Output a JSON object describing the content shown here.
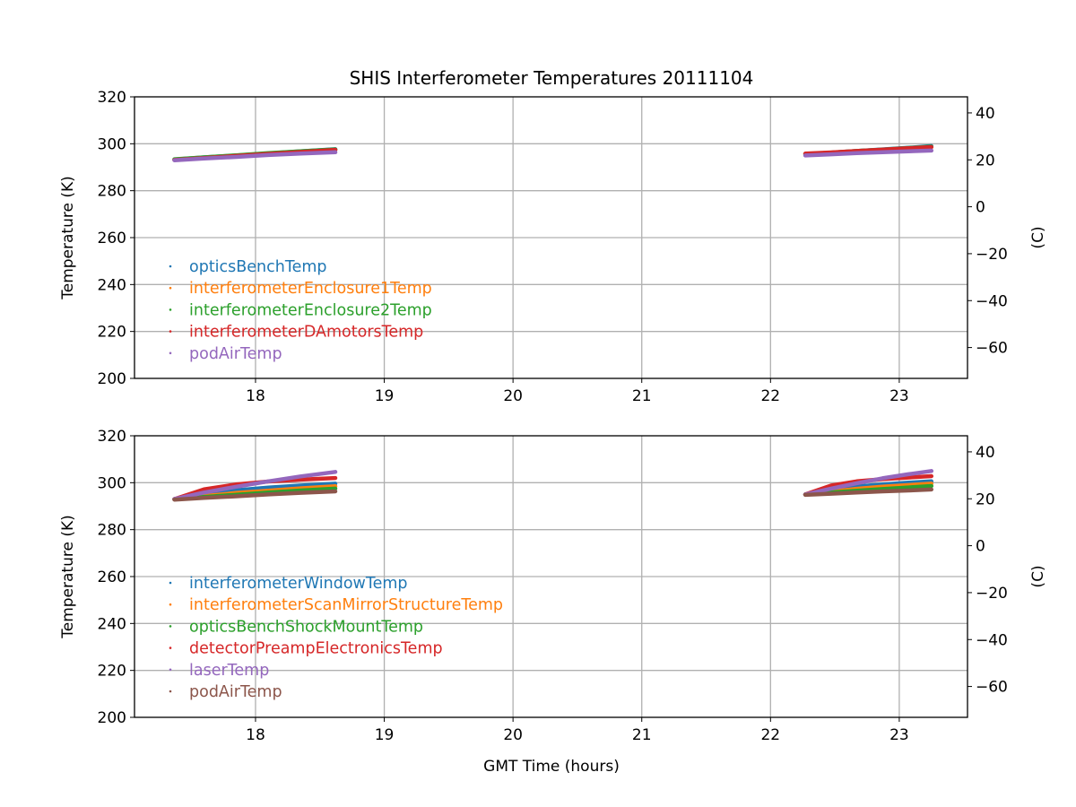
{
  "chart_data": [
    {
      "type": "line",
      "title": "SHIS Interferometer Temperatures 20111104",
      "xlabel": "",
      "ylabel": "Temperature (K)",
      "ylabel_right": "(C)",
      "xlim": [
        17.06,
        23.53
      ],
      "ylim": [
        200,
        320
      ],
      "ylim_right_offset_K_to_C": -273.15,
      "xticks": [
        "18",
        "19",
        "20",
        "21",
        "22",
        "23"
      ],
      "yticks": [
        "200",
        "220",
        "240",
        "260",
        "280",
        "300",
        "320"
      ],
      "yticks_right": [
        "−60",
        "−40",
        "−20",
        "0",
        "20",
        "40"
      ],
      "grid": true,
      "legend_position": "center-left",
      "segments_x": [
        [
          17.37,
          17.6,
          17.85,
          18.1,
          18.35,
          18.62
        ],
        [
          22.27,
          22.47,
          22.67,
          22.87,
          23.07,
          23.25
        ]
      ],
      "series": [
        {
          "name": "opticsBenchTemp",
          "color": "#1f77b4",
          "values": [
            [
              293.3,
              294.2,
              295.0,
              295.9,
              296.8,
              297.7
            ],
            [
              295.6,
              296.2,
              296.9,
              297.6,
              298.3,
              299.0
            ]
          ]
        },
        {
          "name": "interferometerEnclosure1Temp",
          "color": "#ff7f0e",
          "values": [
            [
              293.2,
              294.0,
              294.9,
              295.8,
              296.6,
              297.4
            ],
            [
              295.5,
              296.1,
              296.7,
              297.4,
              298.0,
              298.6
            ]
          ]
        },
        {
          "name": "interferometerEnclosure2Temp",
          "color": "#2ca02c",
          "values": [
            [
              293.4,
              294.2,
              295.1,
              296.0,
              296.8,
              297.6
            ],
            [
              295.6,
              296.2,
              296.9,
              297.5,
              298.2,
              298.8
            ]
          ]
        },
        {
          "name": "interferometerDAmotorsTemp",
          "color": "#d62728",
          "values": [
            [
              293.1,
              293.9,
              294.8,
              295.7,
              296.5,
              297.4
            ],
            [
              295.8,
              296.3,
              296.9,
              297.5,
              298.1,
              298.6
            ]
          ]
        },
        {
          "name": "podAirTemp",
          "color": "#9467bd",
          "values": [
            [
              293.0,
              293.7,
              294.4,
              295.2,
              295.8,
              296.4
            ],
            [
              295.0,
              295.5,
              296.0,
              296.4,
              296.8,
              297.1
            ]
          ]
        }
      ]
    },
    {
      "type": "line",
      "title": "",
      "xlabel": "GMT Time (hours)",
      "ylabel": "Temperature (K)",
      "ylabel_right": "(C)",
      "xlim": [
        17.06,
        23.53
      ],
      "ylim": [
        200,
        320
      ],
      "ylim_right_offset_K_to_C": -273.15,
      "xticks": [
        "18",
        "19",
        "20",
        "21",
        "22",
        "23"
      ],
      "yticks": [
        "200",
        "220",
        "240",
        "260",
        "280",
        "300",
        "320"
      ],
      "yticks_right": [
        "−60",
        "−40",
        "−20",
        "0",
        "20",
        "40"
      ],
      "grid": true,
      "legend_position": "center-left",
      "segments_x": [
        [
          17.37,
          17.6,
          17.85,
          18.1,
          18.35,
          18.62
        ],
        [
          22.27,
          22.47,
          22.67,
          22.87,
          23.07,
          23.25
        ]
      ],
      "series": [
        {
          "name": "interferometerWindowTemp",
          "color": "#1f77b4",
          "values": [
            [
              293,
              295.3,
              296.8,
              297.9,
              298.8,
              299.6
            ],
            [
              295,
              297,
              298.4,
              299.3,
              300,
              300.6
            ]
          ]
        },
        {
          "name": "interferometerScanMirrorStructureTemp",
          "color": "#ff7f0e",
          "values": [
            [
              293,
              294.3,
              295.6,
              296.6,
              297.6,
              298.5
            ],
            [
              295,
              296.2,
              297.4,
              298.3,
              299,
              299.6
            ]
          ]
        },
        {
          "name": "opticsBenchShockMountTemp",
          "color": "#2ca02c",
          "values": [
            [
              293,
              293.9,
              294.9,
              295.8,
              296.7,
              297.5
            ],
            [
              295,
              295.8,
              296.6,
              297.3,
              298,
              298.6
            ]
          ]
        },
        {
          "name": "detectorPreampElectronicsTemp",
          "color": "#d62728",
          "values": [
            [
              293,
              297.2,
              299.3,
              300.5,
              301.3,
              302
            ],
            [
              295,
              298.8,
              300.6,
              301.5,
              302.2,
              302.8
            ]
          ]
        },
        {
          "name": "laserTemp",
          "color": "#9467bd",
          "values": [
            [
              293,
              295.8,
              298.3,
              300.6,
              302.7,
              304.6
            ],
            [
              295,
              297.5,
              299.8,
              301.9,
              303.6,
              305
            ]
          ]
        },
        {
          "name": "podAirTemp",
          "color": "#8c564b",
          "values": [
            [
              292.8,
              293.5,
              294.2,
              295,
              295.7,
              296.3
            ],
            [
              294.8,
              295.3,
              295.8,
              296.3,
              296.7,
              297.1
            ]
          ]
        }
      ]
    }
  ]
}
